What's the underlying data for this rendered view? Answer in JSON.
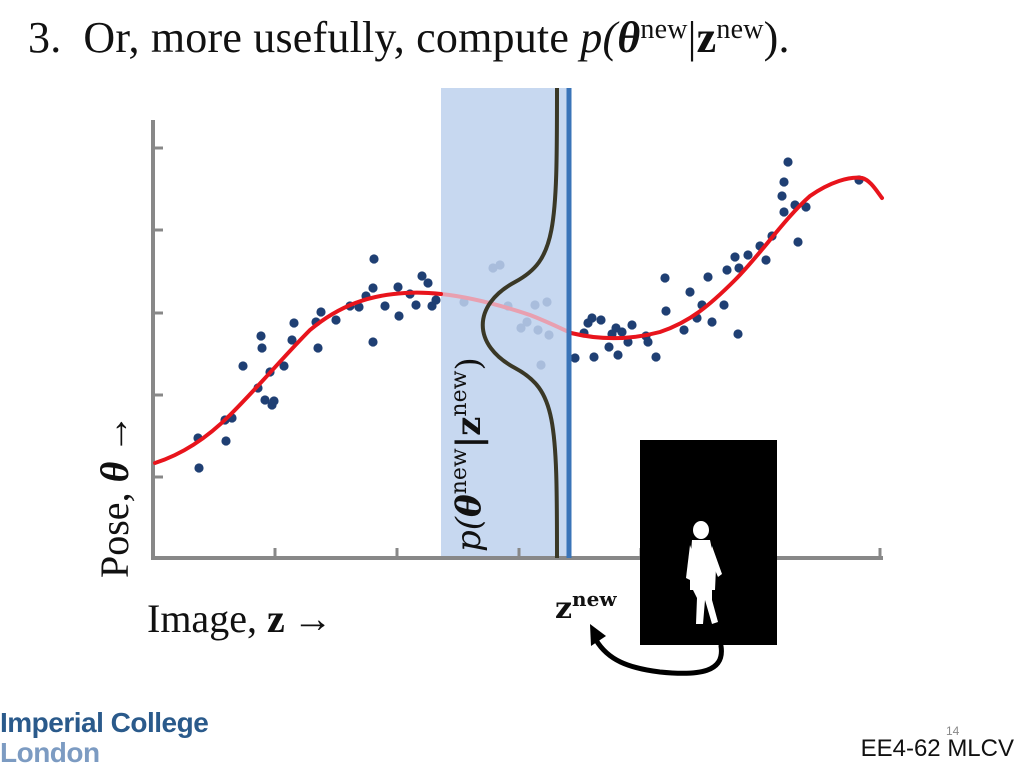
{
  "heading": {
    "number": "3.",
    "text": "Or, more usefully, compute",
    "math_p": "p(",
    "math_theta": "θ",
    "math_new1": "new",
    "math_bar": "|",
    "math_z": "z",
    "math_new2": "new",
    "math_close": ")."
  },
  "figure": {
    "ylabel_word": "Pose, ",
    "ylabel_symbol": "θ",
    "ylabel_arrow": "→",
    "xlabel_word": "Image, ",
    "xlabel_symbol": "z",
    "xlabel_arrow": "→",
    "band_label_p": "p(",
    "band_label_theta": "θ",
    "band_label_new1": "new",
    "band_label_bar": "|z",
    "band_label_new2": "new",
    "band_label_close": ")",
    "znew_label": "z",
    "znew_sup": "new",
    "colors": {
      "curve": "#e8141c",
      "points": "#1f3f73",
      "band": "#c7d8f0",
      "znew_line": "#3a74b8",
      "density": "#3a3826",
      "axis": "#888888"
    },
    "icons": {
      "silhouette": "person-silhouette-icon",
      "arrow": "curved-arrow-icon"
    }
  },
  "footer": {
    "logo_line1": "Imperial College",
    "logo_line2": "London",
    "page_number": "14",
    "course_code": "EE4-62 MLCV"
  }
}
